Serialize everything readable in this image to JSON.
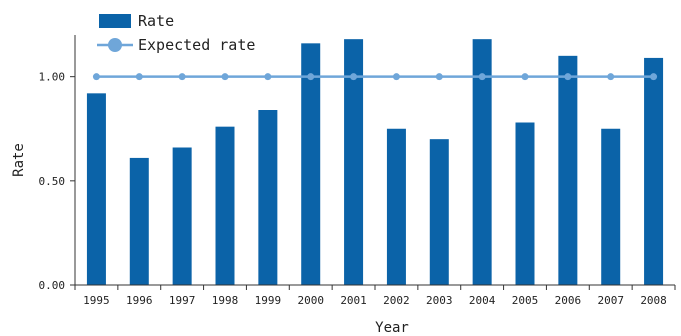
{
  "chart_data": {
    "type": "bar",
    "title": "",
    "xlabel": "Year",
    "ylabel": "Rate",
    "categories": [
      "1995",
      "1996",
      "1997",
      "1998",
      "1999",
      "2000",
      "2001",
      "2002",
      "2003",
      "2004",
      "2005",
      "2006",
      "2007",
      "2008"
    ],
    "series": [
      {
        "name": "Rate",
        "type": "bar",
        "color": "#0b63a8",
        "values": [
          0.92,
          0.61,
          0.66,
          0.76,
          0.84,
          1.16,
          1.18,
          0.75,
          0.7,
          1.18,
          0.78,
          1.1,
          0.75,
          1.09
        ]
      },
      {
        "name": "Expected rate",
        "type": "line",
        "color": "#6fa6d9",
        "values": [
          1.0,
          1.0,
          1.0,
          1.0,
          1.0,
          1.0,
          1.0,
          1.0,
          1.0,
          1.0,
          1.0,
          1.0,
          1.0,
          1.0
        ]
      }
    ],
    "yticks": [
      0,
      0.5,
      1.0
    ],
    "ytick_labels": [
      "0.00",
      "0.50",
      "1.00"
    ],
    "ylim": [
      0,
      1.2
    ],
    "legend_position": "top-left",
    "grid": false
  }
}
